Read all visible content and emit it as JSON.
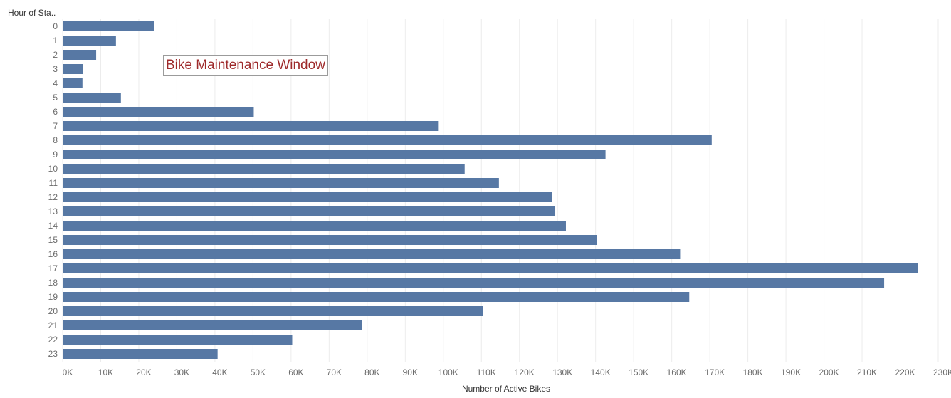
{
  "colors": {
    "bar": "#5778a4",
    "grid": "#ececec",
    "tick_text": "#6b6b6b",
    "annotation_text": "#9e2a2b",
    "annotation_border": "#9b9b9b"
  },
  "annotation": {
    "text": "Bike Maintenance Window"
  },
  "chart_data": {
    "type": "bar",
    "orientation": "horizontal",
    "title": "",
    "ylabel": "Hour of Sta..",
    "xlabel": "Number of Active Bikes",
    "categories": [
      "0",
      "1",
      "2",
      "3",
      "4",
      "5",
      "6",
      "7",
      "8",
      "9",
      "10",
      "11",
      "12",
      "13",
      "14",
      "15",
      "16",
      "17",
      "18",
      "19",
      "20",
      "21",
      "22",
      "23"
    ],
    "values": [
      24000,
      14000,
      8800,
      5400,
      5200,
      15300,
      50200,
      98800,
      170500,
      142600,
      105600,
      114600,
      128600,
      129400,
      132200,
      140300,
      162200,
      224600,
      215800,
      164600,
      110400,
      78600,
      60300,
      40700
    ],
    "xlim": [
      0,
      230000
    ],
    "xticks": [
      0,
      10000,
      20000,
      30000,
      40000,
      50000,
      60000,
      70000,
      80000,
      90000,
      100000,
      110000,
      120000,
      130000,
      140000,
      150000,
      160000,
      170000,
      180000,
      190000,
      200000,
      210000,
      220000,
      230000
    ],
    "xtick_labels": [
      "0K",
      "10K",
      "20K",
      "30K",
      "40K",
      "50K",
      "60K",
      "70K",
      "80K",
      "90K",
      "100K",
      "110K",
      "120K",
      "130K",
      "140K",
      "150K",
      "160K",
      "170K",
      "180K",
      "190K",
      "200K",
      "210K",
      "220K",
      "230K"
    ],
    "grid": true,
    "legend": "none"
  }
}
